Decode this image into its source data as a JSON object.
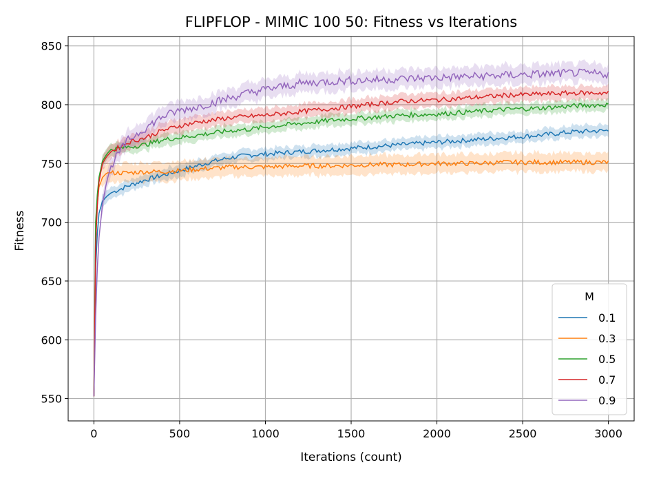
{
  "chart_data": {
    "type": "line",
    "title": "FLIPFLOP - MIMIC 100 50: Fitness vs Iterations",
    "xlabel": "Iterations (count)",
    "ylabel": "Fitness",
    "xlim": [
      -150,
      3150
    ],
    "ylim": [
      531,
      858
    ],
    "xticks": [
      0,
      500,
      1000,
      1500,
      2000,
      2500,
      3000
    ],
    "yticks": [
      550,
      600,
      650,
      700,
      750,
      800,
      850
    ],
    "grid": true,
    "legend": {
      "title": "M",
      "placement": "lower-right"
    },
    "x": [
      0,
      10,
      25,
      50,
      75,
      100,
      150,
      200,
      300,
      400,
      500,
      600,
      700,
      800,
      900,
      1000,
      1200,
      1400,
      1600,
      1800,
      2000,
      2200,
      2400,
      2600,
      2800,
      3000
    ],
    "series": [
      {
        "name": "0.1",
        "color": "#1f77b4",
        "band": 5,
        "values": [
          552,
          660,
          705,
          718,
          722,
          725,
          728,
          731,
          736,
          740,
          744,
          748,
          752,
          755,
          757,
          758,
          760,
          762,
          764,
          766,
          768,
          770,
          772,
          774,
          777,
          778
        ]
      },
      {
        "name": "0.3",
        "color": "#ff7f0e",
        "band": 8,
        "values": [
          552,
          690,
          728,
          738,
          742,
          742,
          742,
          742,
          743,
          743,
          744,
          745,
          746,
          747,
          747,
          747,
          748,
          748,
          749,
          749,
          750,
          750,
          751,
          751,
          751,
          751
        ]
      },
      {
        "name": "0.5",
        "color": "#2ca02c",
        "band": 5,
        "values": [
          552,
          700,
          735,
          752,
          758,
          762,
          763,
          764,
          766,
          770,
          772,
          774,
          776,
          778,
          779,
          781,
          784,
          787,
          789,
          791,
          792,
          794,
          796,
          797,
          799,
          800
        ]
      },
      {
        "name": "0.7",
        "color": "#d62728",
        "band": 6,
        "values": [
          552,
          680,
          730,
          750,
          756,
          760,
          764,
          768,
          772,
          778,
          782,
          785,
          787,
          789,
          790,
          791,
          794,
          797,
          800,
          803,
          804,
          806,
          808,
          809,
          810,
          810
        ]
      },
      {
        "name": "0.9",
        "color": "#9467bd",
        "band": 8,
        "values": [
          552,
          620,
          680,
          715,
          735,
          748,
          760,
          770,
          780,
          790,
          795,
          798,
          802,
          806,
          810,
          813,
          818,
          820,
          821,
          822,
          823,
          824,
          825,
          826,
          827,
          826
        ]
      }
    ]
  }
}
